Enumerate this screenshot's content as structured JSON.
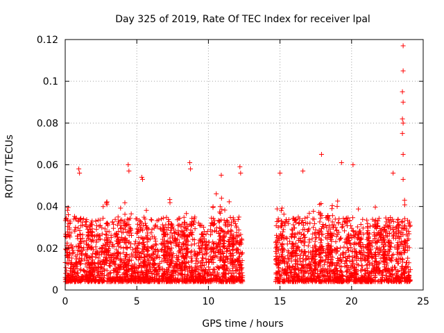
{
  "chart_data": {
    "type": "scatter",
    "title": "Day 325 of 2019, Rate Of TEC Index for receiver lpal",
    "xlabel": "GPS time / hours",
    "ylabel": "ROTI / TECUs",
    "xlim": [
      0,
      25
    ],
    "ylim": [
      0,
      0.12
    ],
    "x_ticks": [
      0,
      5,
      10,
      15,
      20,
      25
    ],
    "x_tick_labels": [
      "0",
      "5",
      "10",
      "15",
      "20",
      "25"
    ],
    "y_ticks": [
      0,
      0.02,
      0.04,
      0.06,
      0.08,
      0.1,
      0.12
    ],
    "y_tick_labels": [
      "0",
      "0.02",
      "0.04",
      "0.06",
      "0.08",
      "0.1",
      "0.12"
    ],
    "grid": true,
    "marker": "+",
    "color": "#ff0000",
    "data_gap_hours": [
      12.4,
      14.7
    ],
    "series": [
      {
        "name": "ROTI",
        "segments": [
          {
            "x_start": 0.0,
            "x_end": 12.4,
            "typical_low": 0.004,
            "typical_high": 0.035
          },
          {
            "x_start": 14.7,
            "x_end": 24.1,
            "typical_low": 0.004,
            "typical_high": 0.035
          }
        ],
        "notable_points": [
          {
            "x": 0.95,
            "y": 0.058
          },
          {
            "x": 1.0,
            "y": 0.056
          },
          {
            "x": 4.4,
            "y": 0.06
          },
          {
            "x": 4.45,
            "y": 0.057
          },
          {
            "x": 5.35,
            "y": 0.054
          },
          {
            "x": 5.4,
            "y": 0.053
          },
          {
            "x": 8.7,
            "y": 0.061
          },
          {
            "x": 8.75,
            "y": 0.058
          },
          {
            "x": 10.9,
            "y": 0.055
          },
          {
            "x": 12.2,
            "y": 0.059
          },
          {
            "x": 12.25,
            "y": 0.056
          },
          {
            "x": 15.0,
            "y": 0.056
          },
          {
            "x": 16.6,
            "y": 0.057
          },
          {
            "x": 17.9,
            "y": 0.065
          },
          {
            "x": 19.3,
            "y": 0.061
          },
          {
            "x": 20.1,
            "y": 0.06
          },
          {
            "x": 22.9,
            "y": 0.056
          },
          {
            "x": 23.6,
            "y": 0.117
          },
          {
            "x": 23.6,
            "y": 0.105
          },
          {
            "x": 23.55,
            "y": 0.095
          },
          {
            "x": 23.6,
            "y": 0.09
          },
          {
            "x": 23.55,
            "y": 0.082
          },
          {
            "x": 23.6,
            "y": 0.08
          },
          {
            "x": 23.55,
            "y": 0.075
          },
          {
            "x": 23.6,
            "y": 0.065
          },
          {
            "x": 23.6,
            "y": 0.053
          },
          {
            "x": 23.7,
            "y": 0.043
          }
        ]
      }
    ]
  }
}
